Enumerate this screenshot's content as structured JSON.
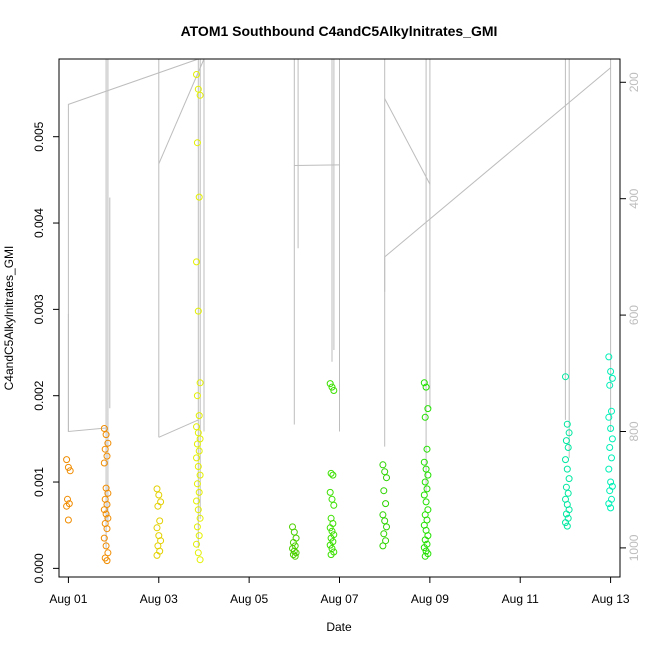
{
  "chart_data": {
    "type": "scatter",
    "title": "ATOM1 Southbound C4andC5Alkylnitrates_GMI",
    "xlabel": "Date",
    "ylabel": "C4andC5Alkylnitrates_GMI",
    "xlim": [
      "2016-07-31T19:00",
      "2016-08-13T05:00"
    ],
    "ylim": [
      -0.0001,
      0.0059
    ],
    "x_ticks": [
      "Aug 01",
      "Aug 03",
      "Aug 05",
      "Aug 07",
      "Aug 09",
      "Aug 11",
      "Aug 13"
    ],
    "y_ticks": [
      "0.000",
      "0.001",
      "0.002",
      "0.003",
      "0.004",
      "0.005"
    ],
    "y2_ticks": [
      "200",
      "400",
      "600",
      "800",
      "1000"
    ],
    "y2_inverted": true,
    "y2_range": [
      160,
      1050
    ],
    "y2_color": "#bdbdbd",
    "grid": false,
    "point_colors_by_day": {
      "Aug 01": "#f08c00",
      "Aug 02": "#f08c00",
      "Aug 03": "#e3d000",
      "Aug 04": "#e3f000",
      "Aug 06": "#4cd000",
      "Aug 07": "#3ce000",
      "Aug 08": "#2ed400",
      "Aug 09": "#22e000",
      "Aug 12": "#00e8a0",
      "Aug 13": "#00f0b8"
    },
    "series": [
      {
        "date": "Aug 01",
        "points": [
          [
            "2016-08-01T00:00",
            0.00126
          ],
          [
            "2016-08-01T00:00",
            0.00117
          ],
          [
            "2016-08-01T00:00",
            0.00113
          ],
          [
            "2016-08-01T00:00",
            0.0008
          ],
          [
            "2016-08-01T00:00",
            0.00075
          ],
          [
            "2016-08-01T00:00",
            0.00072
          ],
          [
            "2016-08-01T00:00",
            0.00056
          ]
        ]
      },
      {
        "date": "Aug 02",
        "points": [
          [
            "2016-08-01T20:00",
            0.00162
          ],
          [
            "2016-08-01T20:00",
            0.00155
          ],
          [
            "2016-08-01T20:00",
            0.00145
          ],
          [
            "2016-08-01T20:00",
            0.00138
          ],
          [
            "2016-08-01T20:00",
            0.0013
          ],
          [
            "2016-08-01T20:00",
            0.00122
          ],
          [
            "2016-08-01T20:00",
            0.00093
          ],
          [
            "2016-08-01T20:00",
            0.00087
          ],
          [
            "2016-08-01T20:00",
            0.0008
          ],
          [
            "2016-08-01T20:00",
            0.00074
          ],
          [
            "2016-08-01T20:00",
            0.00068
          ],
          [
            "2016-08-01T20:00",
            0.00063
          ],
          [
            "2016-08-01T20:00",
            0.00058
          ],
          [
            "2016-08-01T20:00",
            0.00052
          ],
          [
            "2016-08-01T20:00",
            0.00046
          ],
          [
            "2016-08-01T20:00",
            0.00035
          ],
          [
            "2016-08-01T20:00",
            0.00026
          ],
          [
            "2016-08-01T20:00",
            0.00018
          ],
          [
            "2016-08-01T20:00",
            0.00012
          ],
          [
            "2016-08-01T20:00",
            9e-05
          ]
        ]
      },
      {
        "date": "Aug 03",
        "points": [
          [
            "2016-08-03T00:00",
            0.00092
          ],
          [
            "2016-08-03T00:00",
            0.00085
          ],
          [
            "2016-08-03T00:00",
            0.00077
          ],
          [
            "2016-08-03T00:00",
            0.00072
          ],
          [
            "2016-08-03T00:00",
            0.00055
          ],
          [
            "2016-08-03T00:00",
            0.00047
          ],
          [
            "2016-08-03T00:00",
            0.00038
          ],
          [
            "2016-08-03T00:00",
            0.00032
          ],
          [
            "2016-08-03T00:00",
            0.00026
          ],
          [
            "2016-08-03T00:00",
            0.0002
          ],
          [
            "2016-08-03T00:00",
            0.00015
          ]
        ]
      },
      {
        "date": "Aug 04",
        "points": [
          [
            "2016-08-03T21:00",
            0.00572
          ],
          [
            "2016-08-03T21:00",
            0.00555
          ],
          [
            "2016-08-03T21:00",
            0.00548
          ],
          [
            "2016-08-03T21:00",
            0.00493
          ],
          [
            "2016-08-03T21:00",
            0.0043
          ],
          [
            "2016-08-03T21:00",
            0.00355
          ],
          [
            "2016-08-03T21:00",
            0.00298
          ],
          [
            "2016-08-03T21:00",
            0.00215
          ],
          [
            "2016-08-03T21:00",
            0.002
          ],
          [
            "2016-08-03T21:00",
            0.00177
          ],
          [
            "2016-08-03T21:00",
            0.00164
          ],
          [
            "2016-08-03T21:00",
            0.00157
          ],
          [
            "2016-08-03T21:00",
            0.0015
          ],
          [
            "2016-08-03T21:00",
            0.00144
          ],
          [
            "2016-08-03T21:00",
            0.00136
          ],
          [
            "2016-08-03T21:00",
            0.00128
          ],
          [
            "2016-08-03T21:00",
            0.00118
          ],
          [
            "2016-08-03T21:00",
            0.00108
          ],
          [
            "2016-08-03T21:00",
            0.00098
          ],
          [
            "2016-08-03T21:00",
            0.00088
          ],
          [
            "2016-08-03T21:00",
            0.00078
          ],
          [
            "2016-08-03T21:00",
            0.00068
          ],
          [
            "2016-08-03T21:00",
            0.00058
          ],
          [
            "2016-08-03T21:00",
            0.00048
          ],
          [
            "2016-08-03T21:00",
            0.00038
          ],
          [
            "2016-08-03T21:00",
            0.00028
          ],
          [
            "2016-08-03T21:00",
            0.00018
          ],
          [
            "2016-08-03T21:00",
            0.0001
          ]
        ]
      },
      {
        "date": "Aug 06",
        "points": [
          [
            "2016-08-06T00:00",
            0.00048
          ],
          [
            "2016-08-06T00:00",
            0.00042
          ],
          [
            "2016-08-06T00:00",
            0.00035
          ],
          [
            "2016-08-06T00:00",
            0.0003
          ],
          [
            "2016-08-06T00:00",
            0.00026
          ],
          [
            "2016-08-06T00:00",
            0.00023
          ],
          [
            "2016-08-06T00:00",
            0.0002
          ],
          [
            "2016-08-06T00:00",
            0.00018
          ],
          [
            "2016-08-06T00:00",
            0.00016
          ],
          [
            "2016-08-06T00:00",
            0.00014
          ]
        ]
      },
      {
        "date": "Aug 07",
        "points": [
          [
            "2016-08-06T20:00",
            0.00214
          ],
          [
            "2016-08-06T20:00",
            0.0021
          ],
          [
            "2016-08-06T20:00",
            0.00206
          ],
          [
            "2016-08-06T20:00",
            0.0011
          ],
          [
            "2016-08-06T20:00",
            0.00108
          ],
          [
            "2016-08-06T20:00",
            0.00088
          ],
          [
            "2016-08-06T20:00",
            0.0008
          ],
          [
            "2016-08-06T20:00",
            0.00073
          ],
          [
            "2016-08-06T20:00",
            0.00058
          ],
          [
            "2016-08-06T20:00",
            0.00052
          ],
          [
            "2016-08-06T20:00",
            0.00047
          ],
          [
            "2016-08-06T20:00",
            0.00043
          ],
          [
            "2016-08-06T20:00",
            0.00039
          ],
          [
            "2016-08-06T20:00",
            0.00035
          ],
          [
            "2016-08-06T20:00",
            0.00031
          ],
          [
            "2016-08-06T20:00",
            0.00027
          ],
          [
            "2016-08-06T20:00",
            0.00023
          ],
          [
            "2016-08-06T20:00",
            0.00019
          ],
          [
            "2016-08-06T20:00",
            0.00016
          ]
        ]
      },
      {
        "date": "Aug 08",
        "points": [
          [
            "2016-08-08T00:00",
            0.0012
          ],
          [
            "2016-08-08T00:00",
            0.00112
          ],
          [
            "2016-08-08T00:00",
            0.00105
          ],
          [
            "2016-08-08T00:00",
            0.0009
          ],
          [
            "2016-08-08T00:00",
            0.00075
          ],
          [
            "2016-08-08T00:00",
            0.00062
          ],
          [
            "2016-08-08T00:00",
            0.00055
          ],
          [
            "2016-08-08T00:00",
            0.00048
          ],
          [
            "2016-08-08T00:00",
            0.0004
          ],
          [
            "2016-08-08T00:00",
            0.00032
          ],
          [
            "2016-08-08T00:00",
            0.00026
          ]
        ]
      },
      {
        "date": "Aug 09",
        "points": [
          [
            "2016-08-08T22:00",
            0.00215
          ],
          [
            "2016-08-08T22:00",
            0.0021
          ],
          [
            "2016-08-08T22:00",
            0.00185
          ],
          [
            "2016-08-08T22:00",
            0.00175
          ],
          [
            "2016-08-08T22:00",
            0.00138
          ],
          [
            "2016-08-08T22:00",
            0.00123
          ],
          [
            "2016-08-08T22:00",
            0.00115
          ],
          [
            "2016-08-08T22:00",
            0.00108
          ],
          [
            "2016-08-08T22:00",
            0.001
          ],
          [
            "2016-08-08T22:00",
            0.00092
          ],
          [
            "2016-08-08T22:00",
            0.00085
          ],
          [
            "2016-08-08T22:00",
            0.00077
          ],
          [
            "2016-08-08T22:00",
            0.00068
          ],
          [
            "2016-08-08T22:00",
            0.00062
          ],
          [
            "2016-08-08T22:00",
            0.00056
          ],
          [
            "2016-08-08T22:00",
            0.0005
          ],
          [
            "2016-08-08T22:00",
            0.00044
          ],
          [
            "2016-08-08T22:00",
            0.00038
          ],
          [
            "2016-08-08T22:00",
            0.00033
          ],
          [
            "2016-08-08T22:00",
            0.00028
          ],
          [
            "2016-08-08T22:00",
            0.00024
          ],
          [
            "2016-08-08T22:00",
            0.0002
          ],
          [
            "2016-08-08T22:00",
            0.00017
          ],
          [
            "2016-08-08T22:00",
            0.00014
          ]
        ]
      },
      {
        "date": "Aug 12",
        "points": [
          [
            "2016-08-12T01:00",
            0.00222
          ],
          [
            "2016-08-12T01:00",
            0.00167
          ],
          [
            "2016-08-12T01:00",
            0.00157
          ],
          [
            "2016-08-12T01:00",
            0.00148
          ],
          [
            "2016-08-12T01:00",
            0.0014
          ],
          [
            "2016-08-12T01:00",
            0.00126
          ],
          [
            "2016-08-12T01:00",
            0.00115
          ],
          [
            "2016-08-12T01:00",
            0.00104
          ],
          [
            "2016-08-12T01:00",
            0.00094
          ],
          [
            "2016-08-12T01:00",
            0.00087
          ],
          [
            "2016-08-12T01:00",
            0.0008
          ],
          [
            "2016-08-12T01:00",
            0.00074
          ],
          [
            "2016-08-12T01:00",
            0.00068
          ],
          [
            "2016-08-12T01:00",
            0.00063
          ],
          [
            "2016-08-12T01:00",
            0.00058
          ],
          [
            "2016-08-12T01:00",
            0.00053
          ],
          [
            "2016-08-12T01:00",
            0.00049
          ]
        ]
      },
      {
        "date": "Aug 13",
        "points": [
          [
            "2016-08-13T00:00",
            0.00245
          ],
          [
            "2016-08-13T00:00",
            0.00228
          ],
          [
            "2016-08-13T00:00",
            0.0022
          ],
          [
            "2016-08-13T00:00",
            0.00212
          ],
          [
            "2016-08-13T00:00",
            0.00182
          ],
          [
            "2016-08-13T00:00",
            0.00175
          ],
          [
            "2016-08-13T00:00",
            0.00162
          ],
          [
            "2016-08-13T00:00",
            0.0015
          ],
          [
            "2016-08-13T00:00",
            0.0014
          ],
          [
            "2016-08-13T00:00",
            0.00128
          ],
          [
            "2016-08-13T00:00",
            0.00115
          ],
          [
            "2016-08-13T00:00",
            0.001
          ],
          [
            "2016-08-13T00:00",
            0.00095
          ],
          [
            "2016-08-13T00:00",
            0.0009
          ],
          [
            "2016-08-13T00:00",
            0.0008
          ],
          [
            "2016-08-13T00:00",
            0.00075
          ],
          [
            "2016-08-13T00:00",
            0.0007
          ]
        ]
      }
    ],
    "pressure_trace": {
      "color": "#bdbdbd",
      "segments": [
        [
          [
            "2016-08-01T00:00",
            598
          ],
          [
            "2016-08-01T00:00",
            800
          ],
          [
            "2016-08-01T20:00",
            794
          ]
        ],
        [
          [
            "2016-08-01T00:00",
            800
          ],
          [
            "2016-08-01T00:00",
            238
          ],
          [
            "2016-08-03T21:00",
            160
          ]
        ],
        [
          [
            "2016-08-01T20:00",
            160
          ],
          [
            "2016-08-01T20:00",
            1000
          ]
        ],
        [
          [
            "2016-08-01T21:00",
            160
          ],
          [
            "2016-08-01T21:00",
            955
          ]
        ],
        [
          [
            "2016-08-01T22:00",
            595
          ],
          [
            "2016-08-01T22:00",
            398
          ],
          [
            "2016-08-01T22:00",
            760
          ]
        ],
        [
          [
            "2016-08-03T00:00",
            160
          ],
          [
            "2016-08-03T00:00",
            810
          ]
        ],
        [
          [
            "2016-08-03T00:00",
            810
          ],
          [
            "2016-08-03T21:00",
            780
          ]
        ],
        [
          [
            "2016-08-03T00:00",
            340
          ],
          [
            "2016-08-04T00:00",
            160
          ]
        ],
        [
          [
            "2016-08-03T21:00",
            160
          ],
          [
            "2016-08-03T21:00",
            1000
          ]
        ],
        [
          [
            "2016-08-03T22:00",
            160
          ],
          [
            "2016-08-03T22:00",
            950
          ]
        ],
        [
          [
            "2016-08-04T00:00",
            160
          ],
          [
            "2016-08-04T00:00",
            800
          ]
        ],
        [
          [
            "2016-08-05T06:00",
            160
          ],
          [
            "2016-08-05T09:00",
            160
          ]
        ],
        [
          [
            "2016-08-06T00:00",
            160
          ],
          [
            "2016-08-06T00:00",
            788
          ]
        ],
        [
          [
            "2016-08-06T02:00",
            160
          ],
          [
            "2016-08-06T02:00",
            485
          ]
        ],
        [
          [
            "2016-08-06T00:00",
            343
          ],
          [
            "2016-08-07T00:00",
            342
          ]
        ],
        [
          [
            "2016-08-06T20:00",
            160
          ],
          [
            "2016-08-06T20:00",
            680
          ]
        ],
        [
          [
            "2016-08-06T21:00",
            160
          ],
          [
            "2016-08-06T21:00",
            660
          ]
        ],
        [
          [
            "2016-08-07T00:00",
            160
          ],
          [
            "2016-08-07T00:00",
            800
          ]
        ],
        [
          [
            "2016-08-08T00:00",
            160
          ],
          [
            "2016-08-08T00:00",
            826
          ]
        ],
        [
          [
            "2016-08-08T00:00",
            228
          ],
          [
            "2016-08-09T00:00",
            375
          ]
        ],
        [
          [
            "2016-08-08T00:00",
            560
          ],
          [
            "2016-08-08T00:00",
            500
          ],
          [
            "2016-08-13T00:00",
            175
          ]
        ],
        [
          [
            "2016-08-08T22:00",
            160
          ],
          [
            "2016-08-08T22:00",
            905
          ]
        ],
        [
          [
            "2016-08-09T00:00",
            160
          ],
          [
            "2016-08-09T00:00",
            760
          ]
        ],
        [
          [
            "2016-08-12T00:00",
            160
          ],
          [
            "2016-08-12T00:00",
            780
          ]
        ],
        [
          [
            "2016-08-12T02:00",
            160
          ],
          [
            "2016-08-12T02:00",
            845
          ]
        ],
        [
          [
            "2016-08-13T00:00",
            160
          ],
          [
            "2016-08-13T00:00",
            800
          ]
        ]
      ]
    }
  }
}
